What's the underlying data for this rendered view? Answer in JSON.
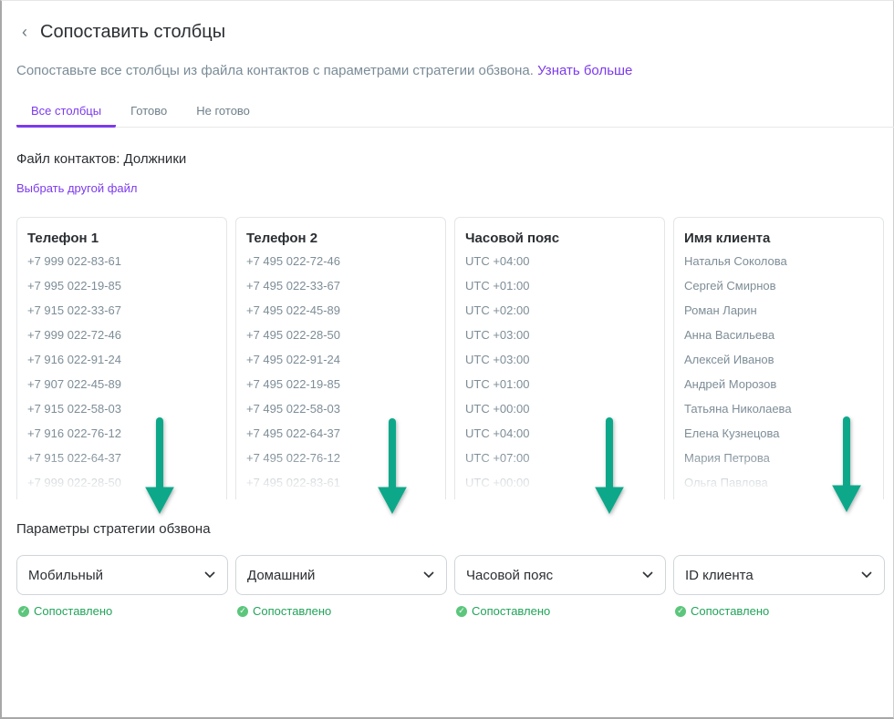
{
  "header": {
    "back_icon": "chevron-left-icon",
    "title": "Сопоставить столбцы"
  },
  "description": {
    "text": "Сопоставьте все столбцы из файла контактов с параметрами стратегии обзвона.",
    "link": "Узнать больше"
  },
  "tabs": [
    {
      "label": "Все столбцы",
      "active": true
    },
    {
      "label": "Готово"
    },
    {
      "label": "Не готово"
    }
  ],
  "file": {
    "label": "Файл контактов: Должники",
    "choose_link": "Выбрать другой файл"
  },
  "columns": [
    {
      "title": "Телефон 1",
      "values": [
        "+7 999 022-83-61",
        "+7 995 022-19-85",
        "+7 915 022-33-67",
        "+7 999 022-72-46",
        "+7 916 022-91-24",
        "+7 907 022-45-89",
        "+7 915 022-58-03",
        "+7 916 022-76-12",
        "+7 915 022-64-37",
        "+7 999 022-28-50"
      ]
    },
    {
      "title": "Телефон 2",
      "values": [
        "+7 495 022-72-46",
        "+7 495 022-33-67",
        "+7 495 022-45-89",
        "+7 495 022-28-50",
        "+7 495 022-91-24",
        "+7 495 022-19-85",
        "+7 495 022-58-03",
        "+7 495 022-64-37",
        "+7 495 022-76-12",
        "+7 495 022-83-61"
      ]
    },
    {
      "title": "Часовой пояс",
      "values": [
        "UTC +04:00",
        "UTC +01:00",
        "UTC +02:00",
        "UTC +03:00",
        "UTC +03:00",
        "UTC +01:00",
        "UTC +00:00",
        "UTC +04:00",
        "UTC +07:00",
        "UTC +00:00"
      ]
    },
    {
      "title": "Имя клиента",
      "values": [
        "Наталья Соколова",
        "Сергей Смирнов",
        "Роман Ларин",
        "Анна Васильева",
        "Алексей Иванов",
        "Андрей Морозов",
        "Татьяна Николаева",
        "Елена Кузнецова",
        "Мария Петрова",
        "Ольга Павлова"
      ]
    }
  ],
  "params": {
    "label": "Параметры стратегии обзвона",
    "selects": [
      {
        "value": "Мобильный",
        "status": "Сопоставлено"
      },
      {
        "value": "Домашний",
        "status": "Сопоставлено"
      },
      {
        "value": "Часовой пояс",
        "status": "Сопоставлено"
      },
      {
        "value": "ID клиента",
        "status": "Сопоставлено"
      }
    ]
  },
  "colors": {
    "accent": "#7c3aed",
    "success": "#22a35a",
    "arrow": "#10a88a"
  }
}
